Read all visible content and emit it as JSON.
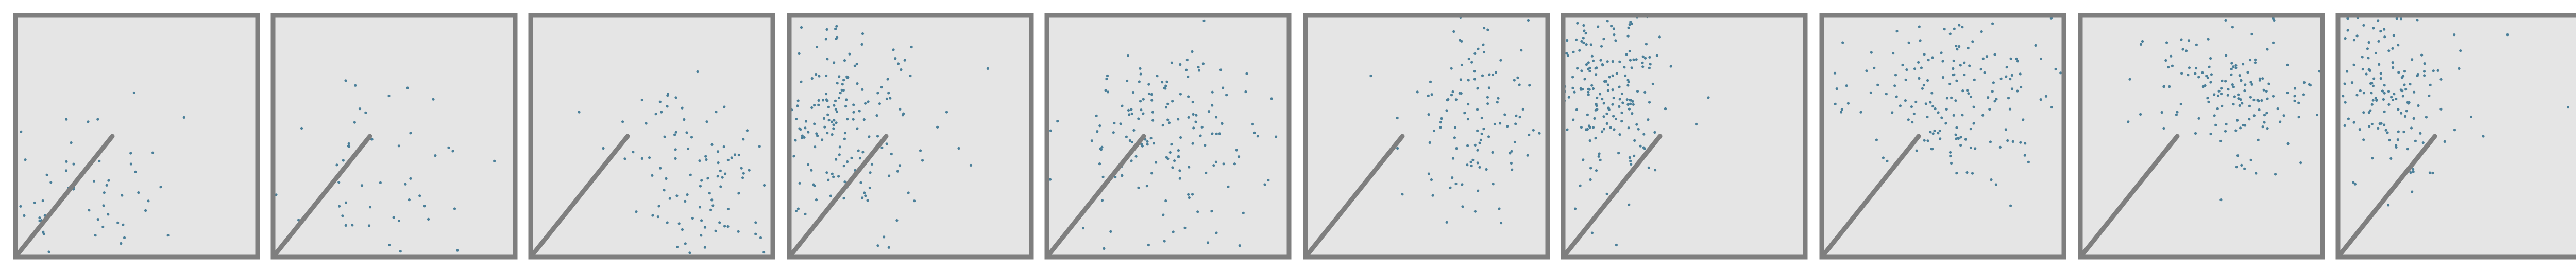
{
  "chart_data": [
    {
      "type": "scatter",
      "panel": 1,
      "xlim": [
        0,
        1
      ],
      "ylim": [
        0,
        1
      ],
      "grid": false,
      "background": "#e5e5e5",
      "frame_color": "#7f7f7f",
      "point_color": "#4a7f99",
      "line_color": "#7f7f7f",
      "reference_line": {
        "x": [
          0,
          0.4
        ],
        "y": [
          0,
          0.5
        ]
      },
      "cluster": {
        "cx": 0.28,
        "cy": 0.28,
        "sx": 0.18,
        "sy": 0.15,
        "n": 45,
        "seed": 11
      },
      "sample_points": [
        [
          0.21,
          0.57
        ],
        [
          0.3,
          0.56
        ],
        [
          0.34,
          0.57
        ],
        [
          0.49,
          0.68
        ],
        [
          0.26,
          0.33
        ],
        [
          0.13,
          0.34
        ],
        [
          0.6,
          0.29
        ],
        [
          0.1,
          0.15
        ],
        [
          0.33,
          0.09
        ],
        [
          0.45,
          0.08
        ],
        [
          0.63,
          0.09
        ]
      ]
    },
    {
      "type": "scatter",
      "panel": 2,
      "xlim": [
        0,
        1
      ],
      "ylim": [
        0,
        1
      ],
      "grid": false,
      "background": "#e5e5e5",
      "frame_color": "#7f7f7f",
      "point_color": "#4a7f99",
      "line_color": "#7f7f7f",
      "reference_line": {
        "x": [
          0,
          0.4
        ],
        "y": [
          0,
          0.5
        ]
      },
      "cluster": {
        "cx": 0.5,
        "cy": 0.3,
        "sx": 0.18,
        "sy": 0.16,
        "n": 40,
        "seed": 23
      },
      "sample_points": [
        [
          0.3,
          0.73
        ],
        [
          0.34,
          0.71
        ],
        [
          0.29,
          0.4
        ],
        [
          0.52,
          0.46
        ],
        [
          0.67,
          0.42
        ],
        [
          0.75,
          0.2
        ],
        [
          0.52,
          0.15
        ],
        [
          0.48,
          0.05
        ]
      ]
    },
    {
      "type": "scatter",
      "panel": 3,
      "xlim": [
        0,
        1
      ],
      "ylim": [
        0,
        1
      ],
      "grid": false,
      "background": "#e5e5e5",
      "frame_color": "#7f7f7f",
      "point_color": "#4a7f99",
      "line_color": "#7f7f7f",
      "reference_line": {
        "x": [
          0,
          0.4
        ],
        "y": [
          0,
          0.5
        ]
      },
      "cluster": {
        "cx": 0.72,
        "cy": 0.33,
        "sx": 0.14,
        "sy": 0.18,
        "n": 95,
        "seed": 37
      },
      "sample_points": [
        [
          0.2,
          0.6
        ],
        [
          0.38,
          0.56
        ],
        [
          0.46,
          0.65
        ],
        [
          0.6,
          0.66
        ],
        [
          0.54,
          0.6
        ],
        [
          0.3,
          0.45
        ],
        [
          0.95,
          0.08
        ],
        [
          0.72,
          0.04
        ]
      ]
    },
    {
      "type": "scatter",
      "panel": 4,
      "xlim": [
        0,
        1
      ],
      "ylim": [
        0,
        1
      ],
      "grid": false,
      "background": "#e5e5e5",
      "frame_color": "#7f7f7f",
      "point_color": "#4a7f99",
      "line_color": "#7f7f7f",
      "reference_line": {
        "x": [
          0,
          0.4
        ],
        "y": [
          0,
          0.5
        ]
      },
      "cluster": {
        "cx": 0.22,
        "cy": 0.55,
        "sx": 0.15,
        "sy": 0.2,
        "n": 170,
        "seed": 41
      },
      "sample_points": [
        [
          0.45,
          0.8
        ],
        [
          0.5,
          0.75
        ],
        [
          0.82,
          0.78
        ],
        [
          0.65,
          0.6
        ],
        [
          0.7,
          0.45
        ],
        [
          0.75,
          0.38
        ],
        [
          0.55,
          0.4
        ],
        [
          0.1,
          0.3
        ],
        [
          0.05,
          0.95
        ],
        [
          0.3,
          0.88
        ]
      ]
    },
    {
      "type": "scatter",
      "panel": 5,
      "xlim": [
        0,
        1
      ],
      "ylim": [
        0,
        1
      ],
      "grid": false,
      "background": "#e5e5e5",
      "frame_color": "#7f7f7f",
      "point_color": "#4a7f99",
      "line_color": "#7f7f7f",
      "reference_line": {
        "x": [
          0,
          0.4
        ],
        "y": [
          0,
          0.5
        ]
      },
      "cluster": {
        "cx": 0.5,
        "cy": 0.5,
        "sx": 0.22,
        "sy": 0.22,
        "n": 160,
        "seed": 53
      },
      "sample_points": [
        [
          0.25,
          0.75
        ],
        [
          0.6,
          0.85
        ],
        [
          0.85,
          0.55
        ],
        [
          0.9,
          0.3
        ],
        [
          0.15,
          0.12
        ],
        [
          0.42,
          0.05
        ],
        [
          0.7,
          0.1
        ]
      ]
    },
    {
      "type": "scatter",
      "panel": 6,
      "xlim": [
        0,
        1
      ],
      "ylim": [
        0,
        1
      ],
      "grid": false,
      "background": "#e5e5e5",
      "frame_color": "#7f7f7f",
      "point_color": "#4a7f99",
      "line_color": "#7f7f7f",
      "reference_line": {
        "x": [
          0,
          0.4
        ],
        "y": [
          0,
          0.5
        ]
      },
      "cluster": {
        "cx": 0.7,
        "cy": 0.55,
        "sx": 0.11,
        "sy": 0.2,
        "n": 110,
        "seed": 67
      },
      "sample_points": [
        [
          0.27,
          0.75
        ],
        [
          0.38,
          0.45
        ],
        [
          0.52,
          0.32
        ],
        [
          0.8,
          0.2
        ],
        [
          0.92,
          0.98
        ],
        [
          0.4,
          0.26
        ]
      ]
    },
    {
      "type": "scatter",
      "panel": 7,
      "xlim": [
        0,
        1
      ],
      "ylim": [
        0,
        1
      ],
      "grid": false,
      "background": "#e5e5e5",
      "frame_color": "#7f7f7f",
      "point_color": "#4a7f99",
      "line_color": "#7f7f7f",
      "reference_line": {
        "x": [
          0,
          0.4
        ],
        "y": [
          0,
          0.5
        ]
      },
      "cluster": {
        "cx": 0.18,
        "cy": 0.7,
        "sx": 0.13,
        "sy": 0.2,
        "n": 200,
        "seed": 71
      },
      "sample_points": [
        [
          0.55,
          0.55
        ],
        [
          0.6,
          0.66
        ],
        [
          0.38,
          0.36
        ],
        [
          0.05,
          0.2
        ],
        [
          0.12,
          0.1
        ],
        [
          0.22,
          0.05
        ]
      ]
    },
    {
      "type": "scatter",
      "panel": 8,
      "xlim": [
        0,
        1
      ],
      "ylim": [
        0,
        1
      ],
      "grid": false,
      "background": "#e5e5e5",
      "frame_color": "#7f7f7f",
      "point_color": "#4a7f99",
      "line_color": "#7f7f7f",
      "reference_line": {
        "x": [
          0,
          0.4
        ],
        "y": [
          0,
          0.5
        ]
      },
      "cluster": {
        "cx": 0.55,
        "cy": 0.67,
        "sx": 0.24,
        "sy": 0.17,
        "n": 180,
        "seed": 83
      },
      "sample_points": [
        [
          0.08,
          0.6
        ],
        [
          0.6,
          0.35
        ],
        [
          0.7,
          0.32
        ],
        [
          0.72,
          0.3
        ],
        [
          0.95,
          0.62
        ]
      ]
    },
    {
      "type": "scatter",
      "panel": 9,
      "xlim": [
        0,
        1
      ],
      "ylim": [
        0,
        1
      ],
      "grid": false,
      "background": "#e5e5e5",
      "frame_color": "#7f7f7f",
      "point_color": "#4a7f99",
      "line_color": "#7f7f7f",
      "reference_line": {
        "x": [
          0,
          0.4
        ],
        "y": [
          0,
          0.5
        ]
      },
      "cluster": {
        "cx": 0.6,
        "cy": 0.68,
        "sx": 0.2,
        "sy": 0.15,
        "n": 150,
        "seed": 97
      },
      "sample_points": [
        [
          0.25,
          0.88
        ],
        [
          0.6,
          0.98
        ],
        [
          0.8,
          0.98
        ],
        [
          0.58,
          0.48
        ],
        [
          0.65,
          0.42
        ],
        [
          0.4,
          0.6
        ]
      ]
    },
    {
      "type": "scatter",
      "panel": 10,
      "xlim": [
        0,
        1
      ],
      "ylim": [
        0,
        1
      ],
      "grid": false,
      "background": "#e5e5e5",
      "frame_color": "#7f7f7f",
      "point_color": "#4a7f99",
      "line_color": "#7f7f7f",
      "reference_line": {
        "x": [
          0,
          0.4
        ],
        "y": [
          0,
          0.5
        ]
      },
      "cluster": {
        "cx": 0.2,
        "cy": 0.7,
        "sx": 0.12,
        "sy": 0.18,
        "n": 150,
        "seed": 101
      },
      "sample_points": [
        [
          0.5,
          0.78
        ],
        [
          0.48,
          0.92
        ],
        [
          0.7,
          0.92
        ],
        [
          0.55,
          0.58
        ],
        [
          0.6,
          0.5
        ],
        [
          0.95,
          0.62
        ],
        [
          0.3,
          0.35
        ]
      ]
    }
  ]
}
